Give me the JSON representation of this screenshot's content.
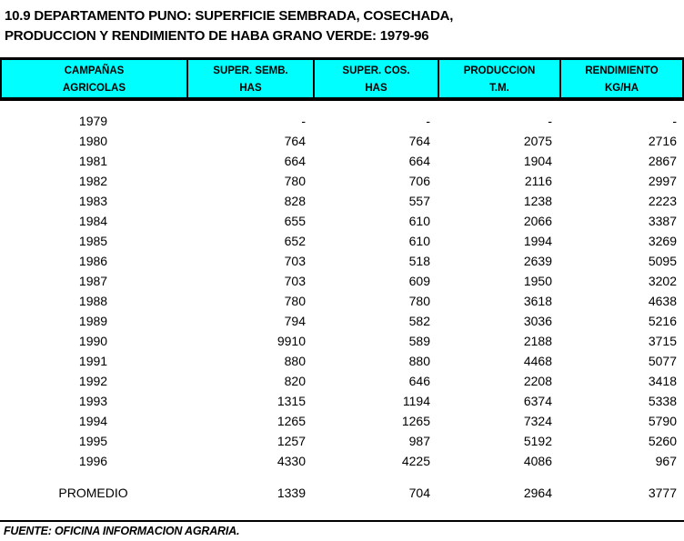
{
  "title": {
    "line1": "10.9  DEPARTAMENTO PUNO: SUPERFICIE SEMBRADA, COSECHADA,",
    "line2": "PRODUCCION Y RENDIMIENTO DE HABA GRANO VERDE: 1979-96"
  },
  "colors": {
    "header_background": "#00ffff",
    "border": "#000000",
    "text": "#000000",
    "page_background": "#ffffff"
  },
  "table": {
    "columns": [
      {
        "line1": "CAMPAÑAS",
        "line2": "AGRICOLAS"
      },
      {
        "line1": "SUPER. SEMB.",
        "line2": "HAS"
      },
      {
        "line1": "SUPER. COS.",
        "line2": "HAS"
      },
      {
        "line1": "PRODUCCION",
        "line2": "T.M."
      },
      {
        "line1": "RENDIMIENTO",
        "line2": "KG/HA"
      }
    ],
    "rows": [
      {
        "label": "1979",
        "values": [
          "-",
          "-",
          "-",
          "-"
        ]
      },
      {
        "label": "1980",
        "values": [
          "764",
          "764",
          "2075",
          "2716"
        ]
      },
      {
        "label": "1981",
        "values": [
          "664",
          "664",
          "1904",
          "2867"
        ]
      },
      {
        "label": "1982",
        "values": [
          "780",
          "706",
          "2116",
          "2997"
        ]
      },
      {
        "label": "1983",
        "values": [
          "828",
          "557",
          "1238",
          "2223"
        ]
      },
      {
        "label": "1984",
        "values": [
          "655",
          "610",
          "2066",
          "3387"
        ]
      },
      {
        "label": "1985",
        "values": [
          "652",
          "610",
          "1994",
          "3269"
        ]
      },
      {
        "label": "1986",
        "values": [
          "703",
          "518",
          "2639",
          "5095"
        ]
      },
      {
        "label": "1987",
        "values": [
          "703",
          "609",
          "1950",
          "3202"
        ]
      },
      {
        "label": "1988",
        "values": [
          "780",
          "780",
          "3618",
          "4638"
        ]
      },
      {
        "label": "1989",
        "values": [
          "794",
          "582",
          "3036",
          "5216"
        ]
      },
      {
        "label": "1990",
        "values": [
          "9910",
          "589",
          "2188",
          "3715"
        ]
      },
      {
        "label": "1991",
        "values": [
          "880",
          "880",
          "4468",
          "5077"
        ]
      },
      {
        "label": "1992",
        "values": [
          "820",
          "646",
          "2208",
          "3418"
        ]
      },
      {
        "label": "1993",
        "values": [
          "1315",
          "1194",
          "6374",
          "5338"
        ]
      },
      {
        "label": "1994",
        "values": [
          "1265",
          "1265",
          "7324",
          "5790"
        ]
      },
      {
        "label": "1995",
        "values": [
          "1257",
          "987",
          "5192",
          "5260"
        ]
      },
      {
        "label": "1996",
        "values": [
          "4330",
          "4225",
          "4086",
          "967"
        ]
      }
    ],
    "summary_row": {
      "label": "PROMEDIO",
      "values": [
        "1339",
        "704",
        "2964",
        "3777"
      ]
    }
  },
  "footer": {
    "source": "FUENTE: OFICINA INFORMACION AGRARIA."
  }
}
